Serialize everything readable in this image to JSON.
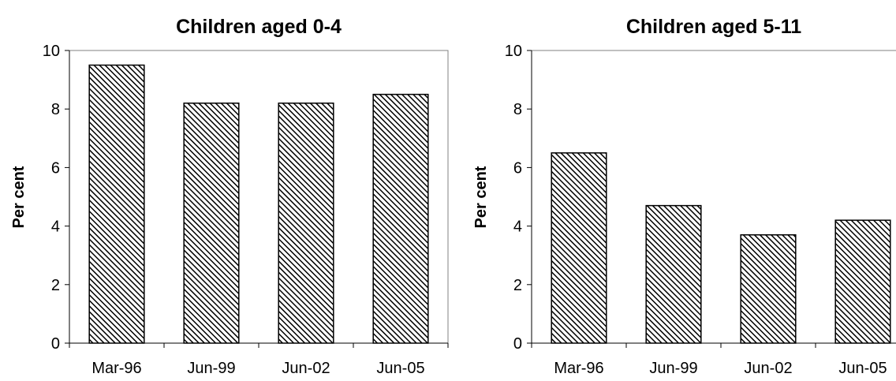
{
  "chart_data": [
    {
      "type": "bar",
      "title": "Children aged 0-4",
      "xlabel": "",
      "ylabel": "Per cent",
      "categories": [
        "Mar-96",
        "Jun-99",
        "Jun-02",
        "Jun-05"
      ],
      "values": [
        9.5,
        8.2,
        8.2,
        8.5
      ],
      "ylim": [
        0,
        10
      ],
      "yticks": [
        "0",
        "2",
        "4",
        "6",
        "8",
        "10"
      ],
      "grid": false,
      "legend": "none",
      "bar_fill": "diagonal-hatch",
      "colors": {
        "bar_stroke": "#000000",
        "hatch": "#000000",
        "background": "#ffffff",
        "axis": "#000000",
        "frame": "#808080"
      }
    },
    {
      "type": "bar",
      "title": "Children aged 5-11",
      "xlabel": "",
      "ylabel": "Per cent",
      "categories": [
        "Mar-96",
        "Jun-99",
        "Jun-02",
        "Jun-05"
      ],
      "values": [
        6.5,
        4.7,
        3.7,
        4.2
      ],
      "ylim": [
        0,
        10
      ],
      "yticks": [
        "0",
        "2",
        "4",
        "6",
        "8",
        "10"
      ],
      "grid": false,
      "legend": "none",
      "bar_fill": "diagonal-hatch",
      "colors": {
        "bar_stroke": "#000000",
        "hatch": "#000000",
        "background": "#ffffff",
        "axis": "#000000",
        "frame": "#808080"
      }
    }
  ]
}
